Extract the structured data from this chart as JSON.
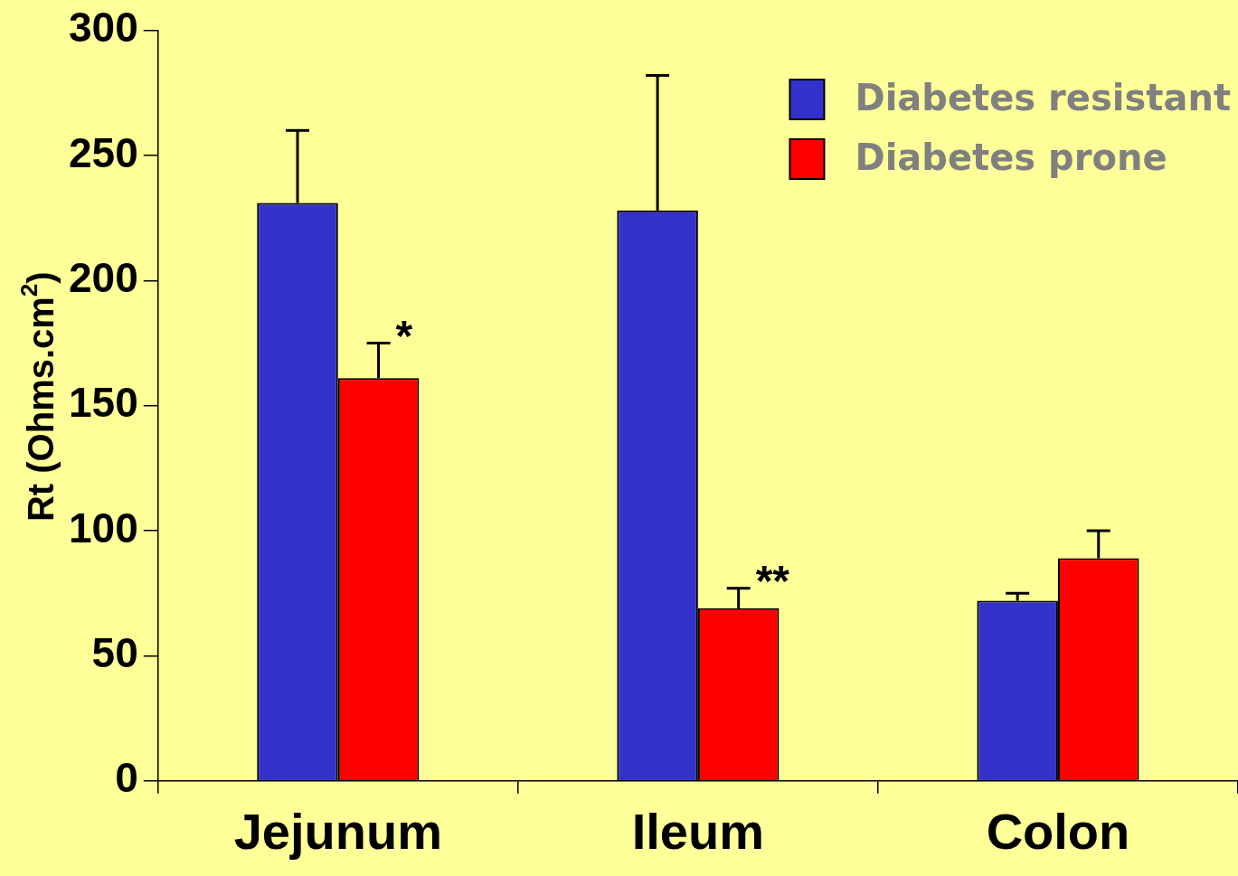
{
  "chart_data": {
    "type": "bar",
    "ylabel": "Rt (Ohms.cm$^{2}$)",
    "categories": [
      "Jejunum",
      "Ileum",
      "Colon"
    ],
    "series": [
      {
        "name": "Diabetes resistant",
        "color": "#3333cc",
        "values": [
          231,
          228,
          72
        ],
        "errors": [
          [
            231,
            260
          ],
          [
            228,
            282
          ],
          [
            72,
            75
          ]
        ]
      },
      {
        "name": "Diabetes prone",
        "color": "#ff0000",
        "values": [
          161,
          69,
          89
        ],
        "errors": [
          [
            161,
            175
          ],
          [
            69,
            77
          ],
          [
            89,
            100
          ]
        ]
      }
    ],
    "ylim": [
      0,
      300
    ],
    "yticks": [
      0,
      50,
      100,
      150,
      200,
      250,
      300
    ],
    "grid": false,
    "legend": "top right",
    "annotations": [
      {
        "text": "*",
        "x": "Jejunum",
        "y": 175
      },
      {
        "text": "**",
        "x": "Ileum",
        "y": 77
      }
    ]
  }
}
